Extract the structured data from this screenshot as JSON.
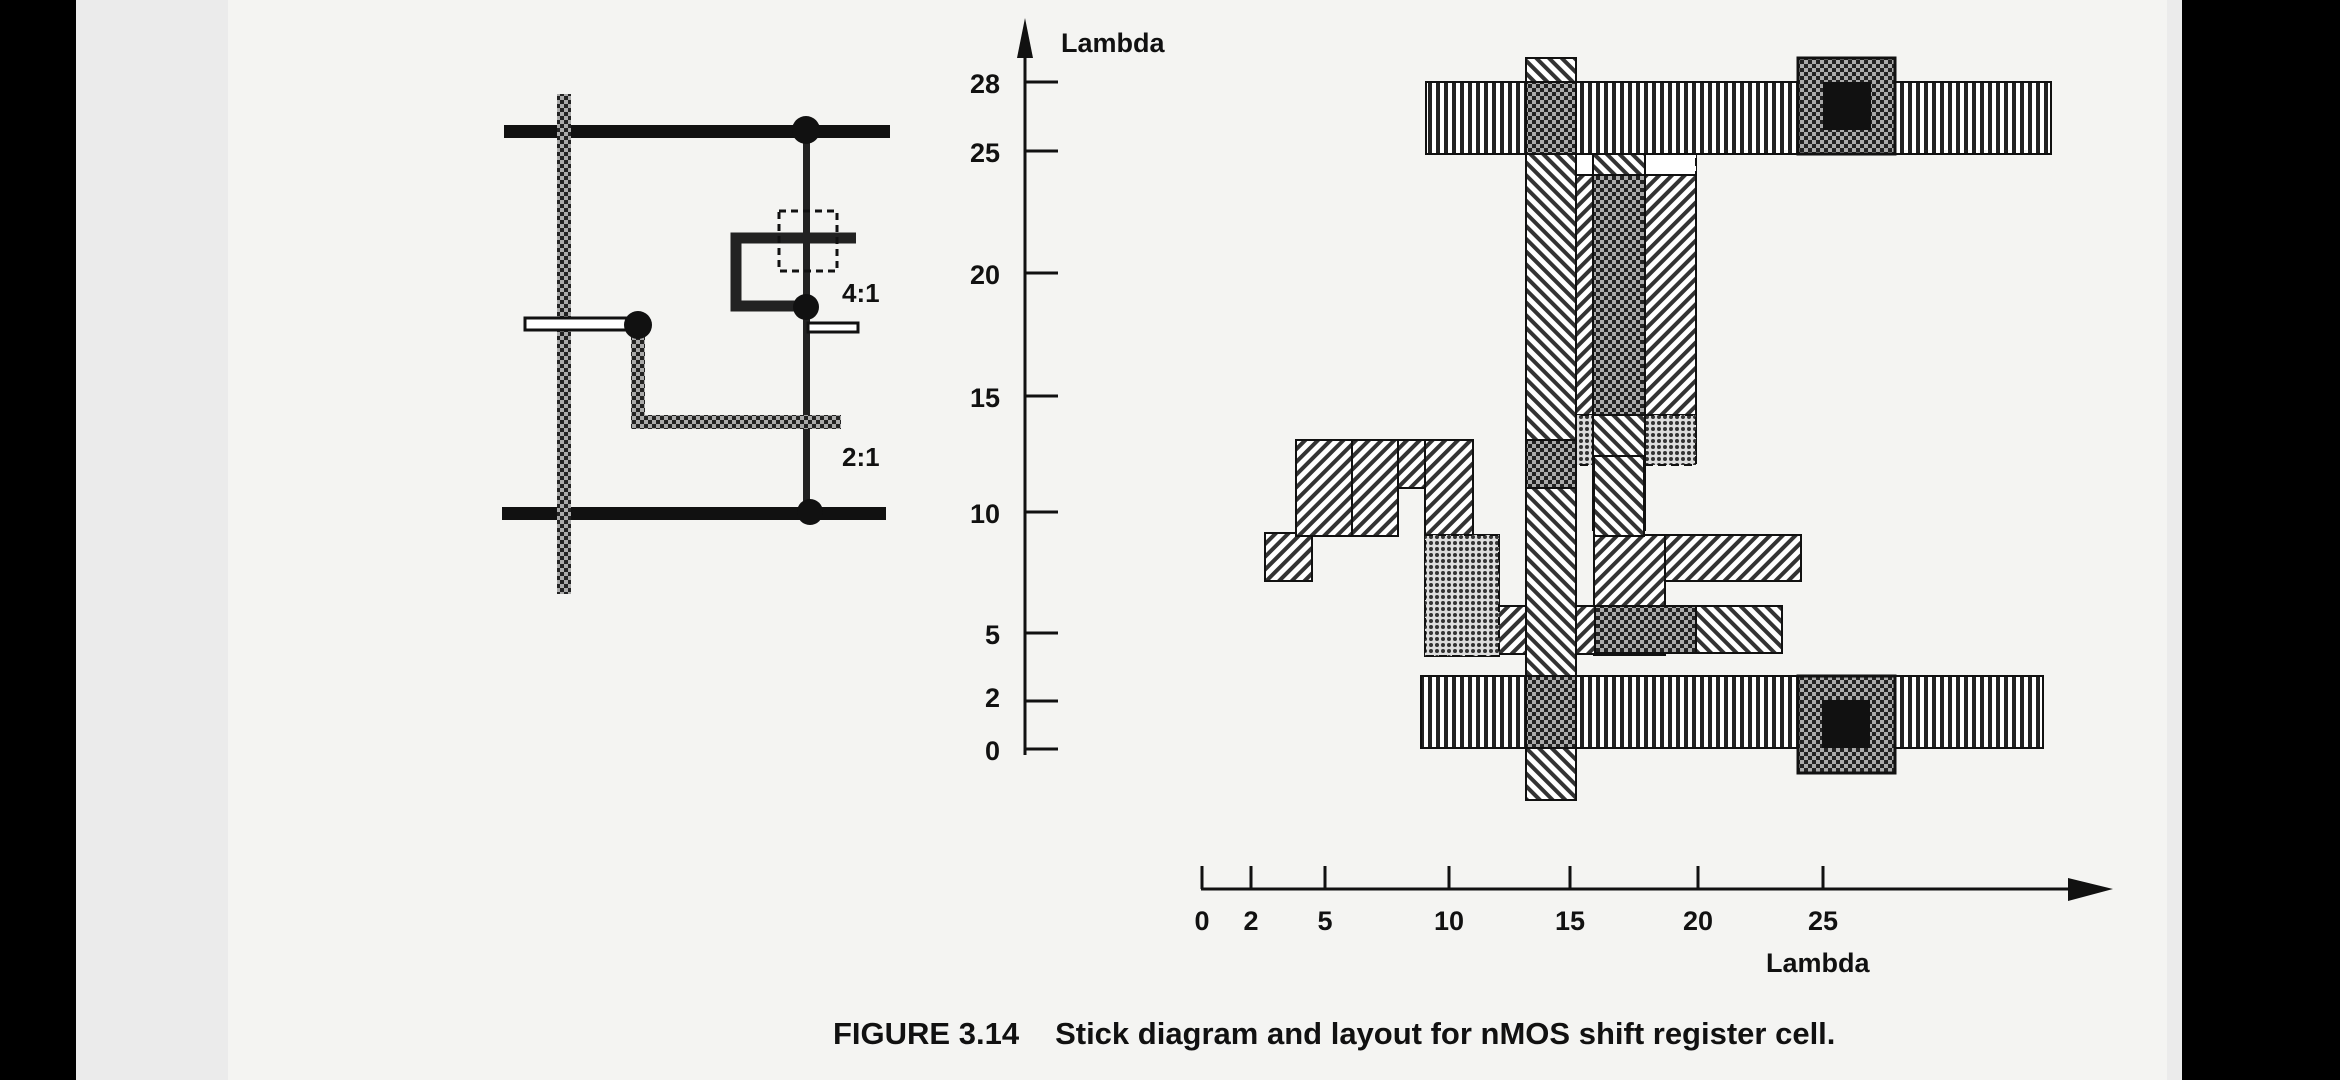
{
  "figure": {
    "number": "FIGURE 3.14",
    "title": "Stick diagram and layout for nMOS shift register cell."
  },
  "stick_diagram": {
    "ratio_labels": [
      "4:1",
      "2:1"
    ]
  },
  "layout": {
    "y_axis": {
      "label": "Lambda",
      "ticks": [
        "28",
        "25",
        "20",
        "15",
        "10",
        "5",
        "2",
        "0"
      ]
    },
    "x_axis": {
      "label": "Lambda",
      "ticks": [
        "0",
        "2",
        "5",
        "10",
        "15",
        "20",
        "25"
      ]
    }
  }
}
